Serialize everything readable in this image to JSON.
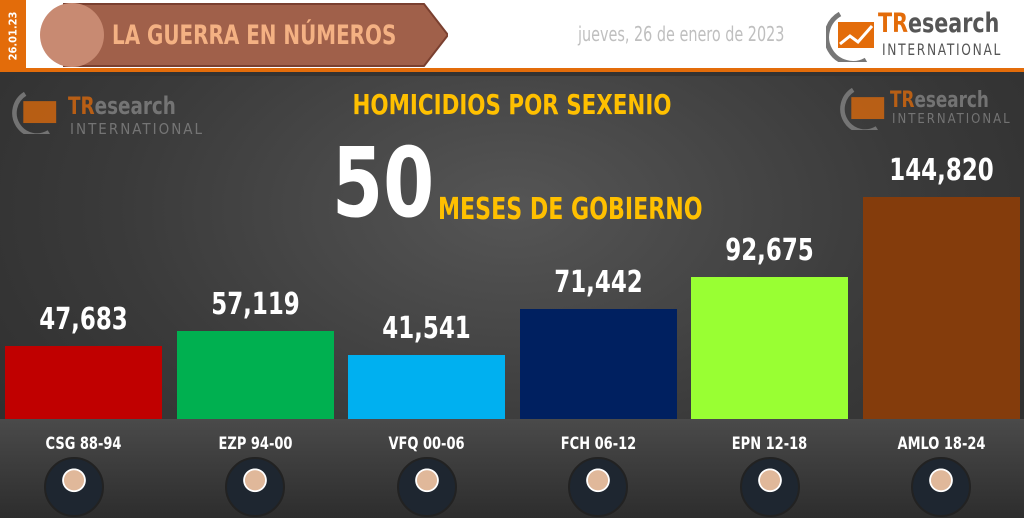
{
  "header": {
    "date_strip": "26.01.23",
    "banner_title": "LA GUERRA EN NÚMEROS",
    "date": "jueves, 26 de enero de 2023",
    "logo": {
      "tr": "TR",
      "rest": "esearch",
      "intl": "INTERNATIONAL"
    }
  },
  "colors": {
    "accent": "#e36c0a",
    "title": "#ffc000"
  },
  "headline": {
    "months_value": "50",
    "months_label": "MESES DE GOBIERNO"
  },
  "chart_data": {
    "type": "bar",
    "title": "HOMICIDIOS POR SEXENIO",
    "categories": [
      "CSG 88-94",
      "EZP 94-00",
      "VFQ 00-06",
      "FCH 06-12",
      "EPN 12-18",
      "AMLO 18-24"
    ],
    "values": [
      47683,
      57119,
      41541,
      71442,
      92675,
      144820
    ],
    "data_labels": [
      "47,683",
      "57,119",
      "41,541",
      "71,442",
      "92,675",
      "144,820"
    ],
    "colors": [
      "#c00000",
      "#00b050",
      "#00b0f0",
      "#002060",
      "#99ff33",
      "#843c0c"
    ],
    "xlabel": "",
    "ylabel": "",
    "ylim": [
      0,
      144820
    ],
    "grid": false,
    "legend": "none"
  }
}
